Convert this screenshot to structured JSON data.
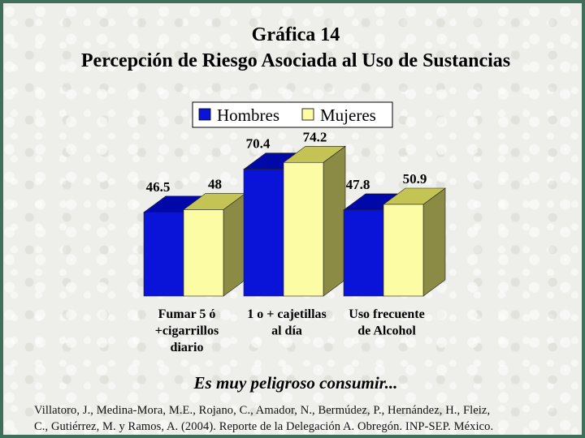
{
  "header": {
    "title_line1": "Gráfica 14",
    "title_line2": "Percepción de Riesgo Asociada al Uso de Sustancias"
  },
  "chart_data": {
    "type": "bar",
    "categories": [
      [
        "Fumar 5 ó",
        "+cigarrillos",
        "diario"
      ],
      [
        "1 o + cajetillas",
        "al día"
      ],
      [
        "Uso frecuente",
        "de Alcohol"
      ]
    ],
    "series": [
      {
        "name": "Hombres",
        "values": [
          46.5,
          70.4,
          47.8
        ],
        "color": "#0a14d8"
      },
      {
        "name": "Mujeres",
        "values": [
          48,
          74.2,
          50.9
        ],
        "color": "#fcfca4"
      }
    ],
    "value_labels": [
      [
        "46.5",
        "70.4",
        "47.8"
      ],
      [
        "48",
        "74.2",
        "50.9"
      ]
    ],
    "legend_placement": "top",
    "ylim": [
      0,
      80
    ],
    "grid": false,
    "style": "3d-bar"
  },
  "caption": "Es muy peligroso consumir...",
  "citation": {
    "line1": "Villatoro, J., Medina-Mora, M.E., Rojano, C., Amador, N., Bermúdez, P., Hernández, H., Fleiz,",
    "line2": "C., Gutiérrez, M. y Ramos, A. (2004). Reporte de la Delegación A. Obregón. INP-SEP. México."
  }
}
